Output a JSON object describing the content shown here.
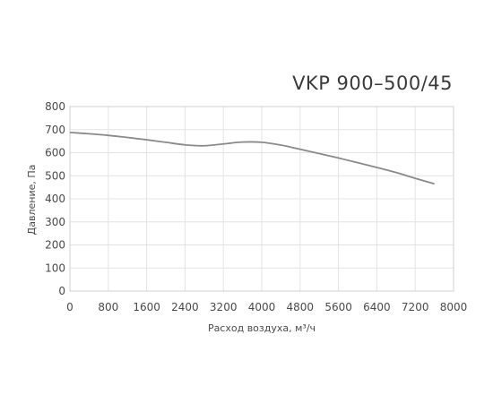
{
  "chart_data": {
    "type": "line",
    "title": "VKP 900–500/45",
    "xlabel": "Расход воздуха, м³/ч",
    "ylabel": "Давление, Па",
    "xlim": [
      0,
      8000
    ],
    "ylim": [
      0,
      800
    ],
    "x_ticks": [
      0,
      800,
      1600,
      2400,
      3200,
      4000,
      4800,
      5600,
      6400,
      7200,
      8000
    ],
    "y_ticks": [
      0,
      100,
      200,
      300,
      400,
      500,
      600,
      700,
      800
    ],
    "x_tick_labels": [
      "0",
      "800",
      "1600",
      "2400",
      "3200",
      "4000",
      "4800",
      "5600",
      "6400",
      "7200",
      "8000"
    ],
    "y_tick_labels": [
      "0",
      "100",
      "200",
      "300",
      "400",
      "500",
      "600",
      "700",
      "800"
    ],
    "grid": true,
    "legend": "none",
    "series": [
      {
        "color": "#8a8a8a",
        "x": [
          0,
          400,
          800,
          1200,
          1600,
          2000,
          2400,
          2800,
          3200,
          3600,
          4000,
          4400,
          4800,
          5200,
          5600,
          6000,
          6400,
          6800,
          7200,
          7600
        ],
        "y": [
          688,
          682,
          675,
          666,
          656,
          645,
          634,
          630,
          638,
          646,
          645,
          633,
          615,
          596,
          577,
          557,
          536,
          514,
          489,
          465
        ]
      }
    ]
  }
}
